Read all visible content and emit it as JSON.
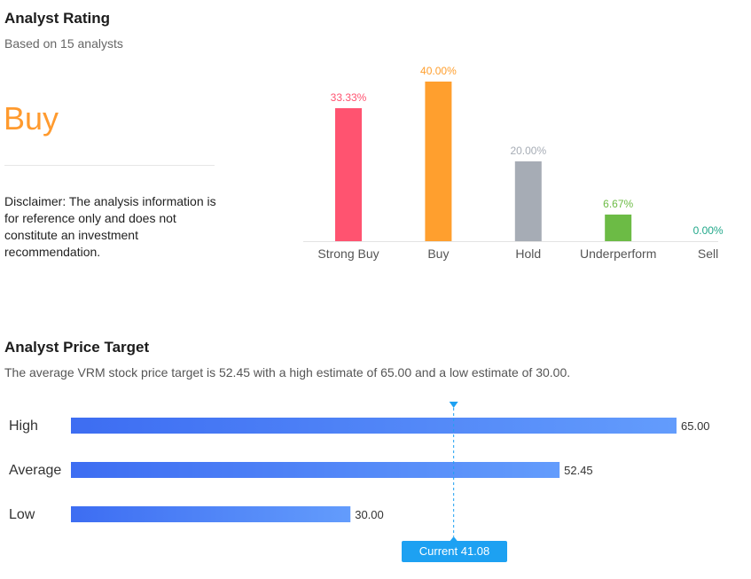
{
  "analyst_rating": {
    "title": "Analyst Rating",
    "subtitle": "Based on 15 analysts",
    "consensus": "Buy",
    "disclaimer": "Disclaimer: The analysis information is for reference only and does not constitute an investment recommendation."
  },
  "price_target": {
    "title": "Analyst Price Target",
    "description": "The average VRM stock price target is 52.45 with a high estimate of 65.00 and a low estimate of 30.00.",
    "current_label": "Current 41.08"
  },
  "chart_data": [
    {
      "type": "bar",
      "categories": [
        "Strong Buy",
        "Buy",
        "Hold",
        "Underperform",
        "Sell"
      ],
      "values": [
        33.33,
        40.0,
        20.0,
        6.67,
        0.0
      ],
      "value_labels": [
        "33.33%",
        "40.00%",
        "20.00%",
        "6.67%",
        "0.00%"
      ],
      "colors": [
        "#ff5370",
        "#ff9f2e",
        "#a6acb5",
        "#6cbb45",
        "#22a88a"
      ],
      "ylim": [
        0,
        40
      ]
    },
    {
      "type": "bar",
      "orientation": "horizontal",
      "categories": [
        "High",
        "Average",
        "Low"
      ],
      "values": [
        65.0,
        52.45,
        30.0
      ],
      "value_labels": [
        "65.00",
        "52.45",
        "30.00"
      ],
      "current": 41.08,
      "colors": {
        "bar_start": "#3d6df2",
        "bar_end": "#639cfc",
        "current": "#1da1f2"
      }
    }
  ]
}
